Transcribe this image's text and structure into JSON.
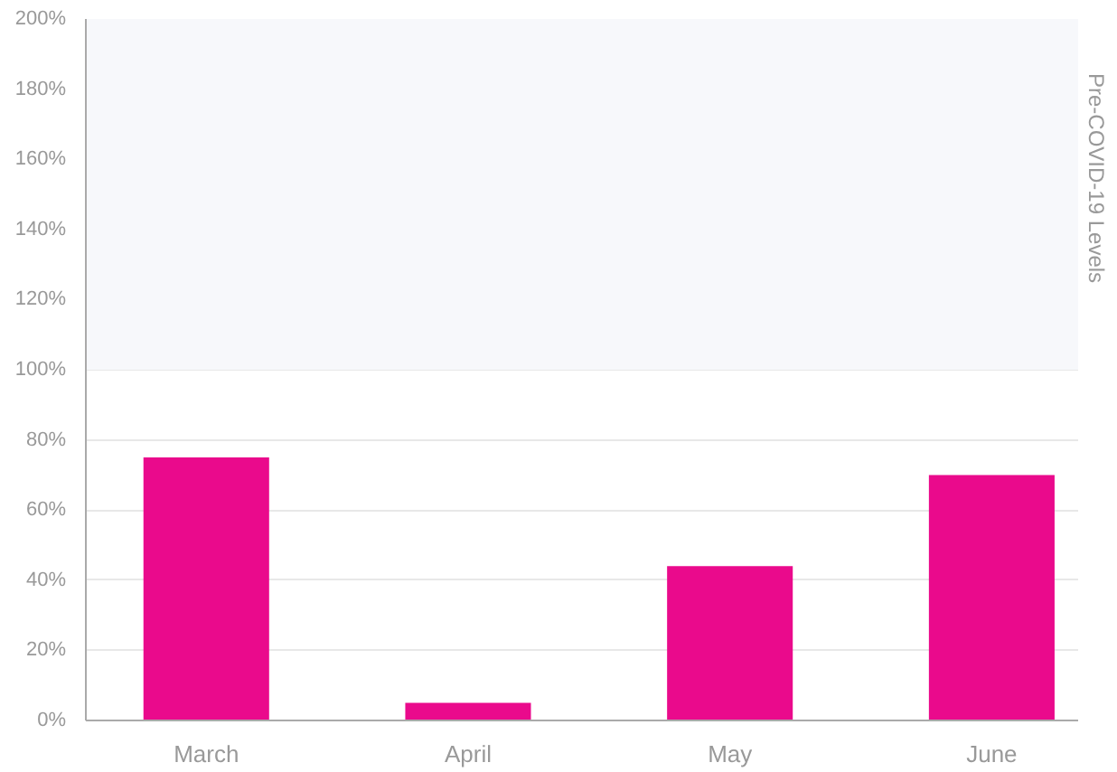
{
  "chart_data": {
    "type": "bar",
    "categories": [
      "March",
      "April",
      "May",
      "June"
    ],
    "values": [
      75,
      5,
      44,
      70
    ],
    "color": "#ea0a8c",
    "ylim": [
      0,
      200
    ],
    "yticks": [
      {
        "value": 0,
        "label": "0%"
      },
      {
        "value": 20,
        "label": "20%"
      },
      {
        "value": 40,
        "label": "40%"
      },
      {
        "value": 60,
        "label": "60%"
      },
      {
        "value": 80,
        "label": "80%"
      },
      {
        "value": 100,
        "label": "100%"
      },
      {
        "value": 120,
        "label": "120%"
      },
      {
        "value": 140,
        "label": "140%"
      },
      {
        "value": 160,
        "label": "160%"
      },
      {
        "value": 180,
        "label": "180%"
      },
      {
        "value": 200,
        "label": "200%"
      }
    ],
    "bands": [
      {
        "axis": "y",
        "from": 100,
        "to": 200,
        "label": "Pre-COVID-19 Levels",
        "color": "#f7f8fb"
      }
    ],
    "grid": "y"
  }
}
